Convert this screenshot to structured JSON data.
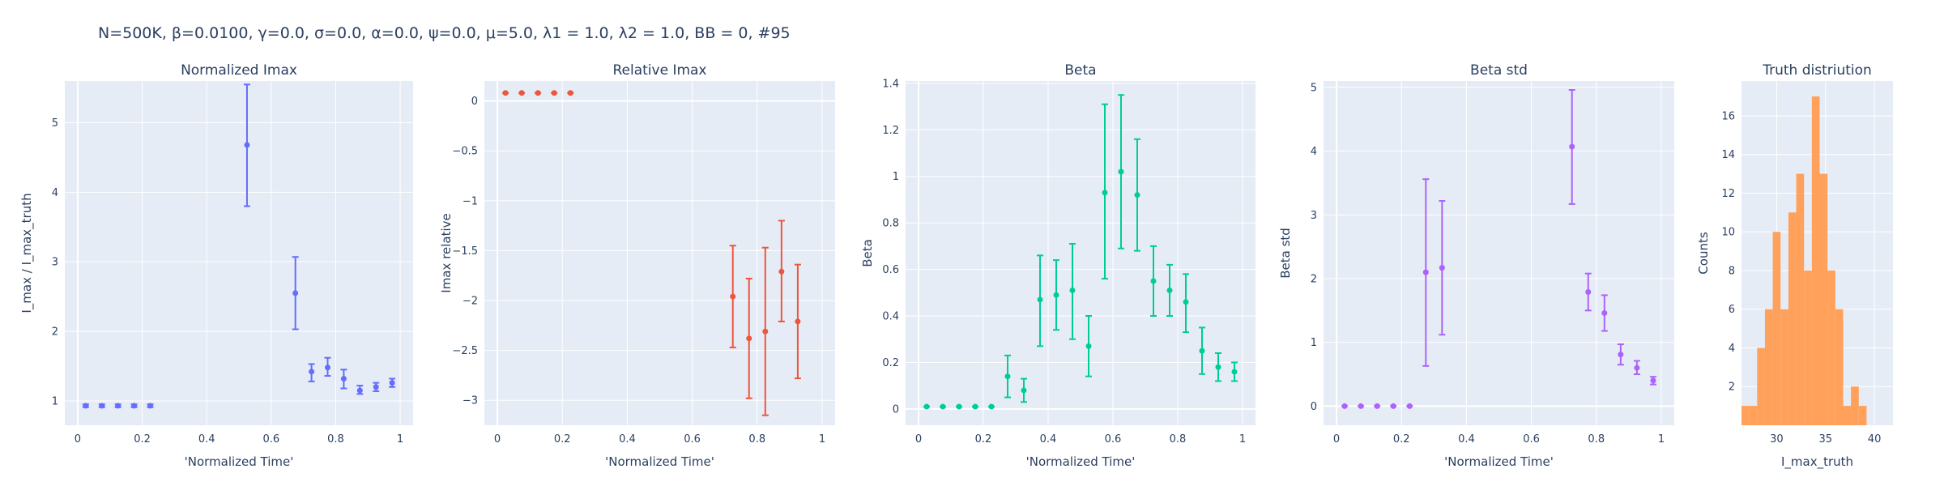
{
  "title": "N=500K, β=0.0100, γ=0.0, σ=0.0,  α=0.0, ψ=0.0, μ=5.0, λ1 = 1.0, λ2 = 1.0, BB = 0, #95",
  "chart_data": [
    {
      "type": "scatter",
      "title": "Normalized Imax",
      "xlabel": "'Normalized Time'",
      "ylabel": "I_max / I_max_truth",
      "color": "#636efa",
      "xlim": [
        -0.04,
        1.04
      ],
      "ylim": [
        0.65,
        5.6
      ],
      "xticks": [
        0,
        0.2,
        0.4,
        0.6,
        0.8,
        1
      ],
      "xtick_labels": [
        "0",
        "0.2",
        "0.4",
        "0.6",
        "0.8",
        "1"
      ],
      "yticks": [
        1,
        2,
        3,
        4,
        5
      ],
      "ytick_labels": [
        "1",
        "2",
        "3",
        "4",
        "5"
      ],
      "points": [
        {
          "x": 0.025,
          "y": 0.93,
          "lo": 0.91,
          "hi": 0.95
        },
        {
          "x": 0.075,
          "y": 0.93,
          "lo": 0.91,
          "hi": 0.95
        },
        {
          "x": 0.125,
          "y": 0.93,
          "lo": 0.91,
          "hi": 0.95
        },
        {
          "x": 0.175,
          "y": 0.93,
          "lo": 0.91,
          "hi": 0.95
        },
        {
          "x": 0.225,
          "y": 0.93,
          "lo": 0.91,
          "hi": 0.95
        },
        {
          "x": 0.525,
          "y": 4.68,
          "lo": 3.8,
          "hi": 5.55
        },
        {
          "x": 0.675,
          "y": 2.55,
          "lo": 2.03,
          "hi": 3.07
        },
        {
          "x": 0.725,
          "y": 1.42,
          "lo": 1.28,
          "hi": 1.53
        },
        {
          "x": 0.775,
          "y": 1.48,
          "lo": 1.36,
          "hi": 1.62
        },
        {
          "x": 0.825,
          "y": 1.32,
          "lo": 1.18,
          "hi": 1.45
        },
        {
          "x": 0.875,
          "y": 1.15,
          "lo": 1.1,
          "hi": 1.22
        },
        {
          "x": 0.925,
          "y": 1.2,
          "lo": 1.14,
          "hi": 1.26
        },
        {
          "x": 0.975,
          "y": 1.26,
          "lo": 1.2,
          "hi": 1.32
        }
      ]
    },
    {
      "type": "scatter",
      "title": "Relative Imax",
      "xlabel": "'Normalized Time'",
      "ylabel": "Imax relative",
      "color": "#ef553b",
      "xlim": [
        -0.04,
        1.04
      ],
      "ylim": [
        -3.25,
        0.2
      ],
      "xticks": [
        0,
        0.2,
        0.4,
        0.6,
        0.8,
        1
      ],
      "xtick_labels": [
        "0",
        "0.2",
        "0.4",
        "0.6",
        "0.8",
        "1"
      ],
      "yticks": [
        0,
        -0.5,
        -1,
        -1.5,
        -2,
        -2.5,
        -3
      ],
      "ytick_labels": [
        "0",
        "−0.5",
        "−1",
        "−1.5",
        "−2",
        "−2.5",
        "−3"
      ],
      "points": [
        {
          "x": 0.025,
          "y": 0.08,
          "lo": 0.08,
          "hi": 0.08
        },
        {
          "x": 0.075,
          "y": 0.08,
          "lo": 0.08,
          "hi": 0.08
        },
        {
          "x": 0.125,
          "y": 0.08,
          "lo": 0.08,
          "hi": 0.08
        },
        {
          "x": 0.175,
          "y": 0.08,
          "lo": 0.08,
          "hi": 0.08
        },
        {
          "x": 0.225,
          "y": 0.08,
          "lo": 0.08,
          "hi": 0.08
        },
        {
          "x": 0.725,
          "y": -1.96,
          "lo": -2.47,
          "hi": -1.45
        },
        {
          "x": 0.775,
          "y": -2.38,
          "lo": -2.98,
          "hi": -1.78
        },
        {
          "x": 0.825,
          "y": -2.31,
          "lo": -3.15,
          "hi": -1.47
        },
        {
          "x": 0.875,
          "y": -1.71,
          "lo": -2.21,
          "hi": -1.2
        },
        {
          "x": 0.925,
          "y": -2.21,
          "lo": -2.78,
          "hi": -1.64
        }
      ]
    },
    {
      "type": "scatter",
      "title": "Beta",
      "xlabel": "'Normalized Time'",
      "ylabel": "Beta",
      "color": "#00cc96",
      "xlim": [
        -0.04,
        1.04
      ],
      "ylim": [
        -0.07,
        1.41
      ],
      "xticks": [
        0,
        0.2,
        0.4,
        0.6,
        0.8,
        1
      ],
      "xtick_labels": [
        "0",
        "0.2",
        "0.4",
        "0.6",
        "0.8",
        "1"
      ],
      "yticks": [
        0,
        0.2,
        0.4,
        0.6,
        0.8,
        1,
        1.2,
        1.4
      ],
      "ytick_labels": [
        "0",
        "0.2",
        "0.4",
        "0.6",
        "0.8",
        "1",
        "1.2",
        "1.4"
      ],
      "points": [
        {
          "x": 0.025,
          "y": 0.01,
          "lo": 0.01,
          "hi": 0.01
        },
        {
          "x": 0.075,
          "y": 0.01,
          "lo": 0.01,
          "hi": 0.01
        },
        {
          "x": 0.125,
          "y": 0.01,
          "lo": 0.01,
          "hi": 0.01
        },
        {
          "x": 0.175,
          "y": 0.01,
          "lo": 0.01,
          "hi": 0.01
        },
        {
          "x": 0.225,
          "y": 0.01,
          "lo": 0.01,
          "hi": 0.01
        },
        {
          "x": 0.275,
          "y": 0.14,
          "lo": 0.05,
          "hi": 0.23
        },
        {
          "x": 0.325,
          "y": 0.08,
          "lo": 0.03,
          "hi": 0.13
        },
        {
          "x": 0.375,
          "y": 0.47,
          "lo": 0.27,
          "hi": 0.66
        },
        {
          "x": 0.425,
          "y": 0.49,
          "lo": 0.34,
          "hi": 0.64
        },
        {
          "x": 0.475,
          "y": 0.51,
          "lo": 0.3,
          "hi": 0.71
        },
        {
          "x": 0.525,
          "y": 0.27,
          "lo": 0.14,
          "hi": 0.4
        },
        {
          "x": 0.575,
          "y": 0.93,
          "lo": 0.56,
          "hi": 1.31
        },
        {
          "x": 0.625,
          "y": 1.02,
          "lo": 0.69,
          "hi": 1.35
        },
        {
          "x": 0.675,
          "y": 0.92,
          "lo": 0.68,
          "hi": 1.16
        },
        {
          "x": 0.725,
          "y": 0.55,
          "lo": 0.4,
          "hi": 0.7
        },
        {
          "x": 0.775,
          "y": 0.51,
          "lo": 0.4,
          "hi": 0.62
        },
        {
          "x": 0.825,
          "y": 0.46,
          "lo": 0.33,
          "hi": 0.58
        },
        {
          "x": 0.875,
          "y": 0.25,
          "lo": 0.15,
          "hi": 0.35
        },
        {
          "x": 0.925,
          "y": 0.18,
          "lo": 0.12,
          "hi": 0.24
        },
        {
          "x": 0.975,
          "y": 0.16,
          "lo": 0.12,
          "hi": 0.2
        }
      ]
    },
    {
      "type": "scatter",
      "title": "Beta std",
      "xlabel": "'Normalized Time'",
      "ylabel": "Beta std",
      "color": "#ab63fa",
      "xlim": [
        -0.04,
        1.04
      ],
      "ylim": [
        -0.3,
        5.1
      ],
      "xticks": [
        0,
        0.2,
        0.4,
        0.6,
        0.8,
        1
      ],
      "xtick_labels": [
        "0",
        "0.2",
        "0.4",
        "0.6",
        "0.8",
        "1"
      ],
      "yticks": [
        0,
        1,
        2,
        3,
        4,
        5
      ],
      "ytick_labels": [
        "0",
        "1",
        "2",
        "3",
        "4",
        "5"
      ],
      "points": [
        {
          "x": 0.025,
          "y": 0.0,
          "lo": 0.0,
          "hi": 0.0
        },
        {
          "x": 0.075,
          "y": 0.0,
          "lo": 0.0,
          "hi": 0.0
        },
        {
          "x": 0.125,
          "y": 0.0,
          "lo": 0.0,
          "hi": 0.0
        },
        {
          "x": 0.175,
          "y": 0.0,
          "lo": 0.0,
          "hi": 0.0
        },
        {
          "x": 0.225,
          "y": 0.0,
          "lo": 0.0,
          "hi": 0.0
        },
        {
          "x": 0.275,
          "y": 2.1,
          "lo": 0.63,
          "hi": 3.56
        },
        {
          "x": 0.325,
          "y": 2.17,
          "lo": 1.12,
          "hi": 3.22
        },
        {
          "x": 0.725,
          "y": 4.07,
          "lo": 3.17,
          "hi": 4.96
        },
        {
          "x": 0.775,
          "y": 1.79,
          "lo": 1.5,
          "hi": 2.08
        },
        {
          "x": 0.825,
          "y": 1.46,
          "lo": 1.18,
          "hi": 1.74
        },
        {
          "x": 0.875,
          "y": 0.81,
          "lo": 0.65,
          "hi": 0.97
        },
        {
          "x": 0.925,
          "y": 0.6,
          "lo": 0.5,
          "hi": 0.71
        },
        {
          "x": 0.975,
          "y": 0.4,
          "lo": 0.34,
          "hi": 0.46
        }
      ]
    },
    {
      "type": "bar",
      "title": "Truth distriution",
      "xlabel": "I_max_truth",
      "ylabel": "Counts",
      "color": "#ffa15a",
      "xlim": [
        26.4,
        41.9
      ],
      "ylim": [
        0,
        17.8
      ],
      "xticks": [
        30,
        35,
        40
      ],
      "xtick_labels": [
        "30",
        "35",
        "40"
      ],
      "yticks": [
        2,
        4,
        6,
        8,
        10,
        12,
        14,
        16
      ],
      "ytick_labels": [
        "2",
        "4",
        "6",
        "8",
        "10",
        "12",
        "14",
        "16"
      ],
      "bin_width": 0.8,
      "bins_start": [
        26.4,
        27.2,
        28.0,
        28.8,
        29.6,
        30.4,
        31.2,
        32.0,
        32.8,
        33.6,
        34.4,
        35.2,
        36.0,
        36.8,
        37.6,
        38.4,
        39.2,
        40.0,
        40.8
      ],
      "counts": [
        1,
        1,
        4,
        6,
        10,
        6,
        11,
        13,
        8,
        17,
        13,
        8,
        6,
        1,
        2,
        1,
        0,
        0,
        0
      ]
    }
  ]
}
